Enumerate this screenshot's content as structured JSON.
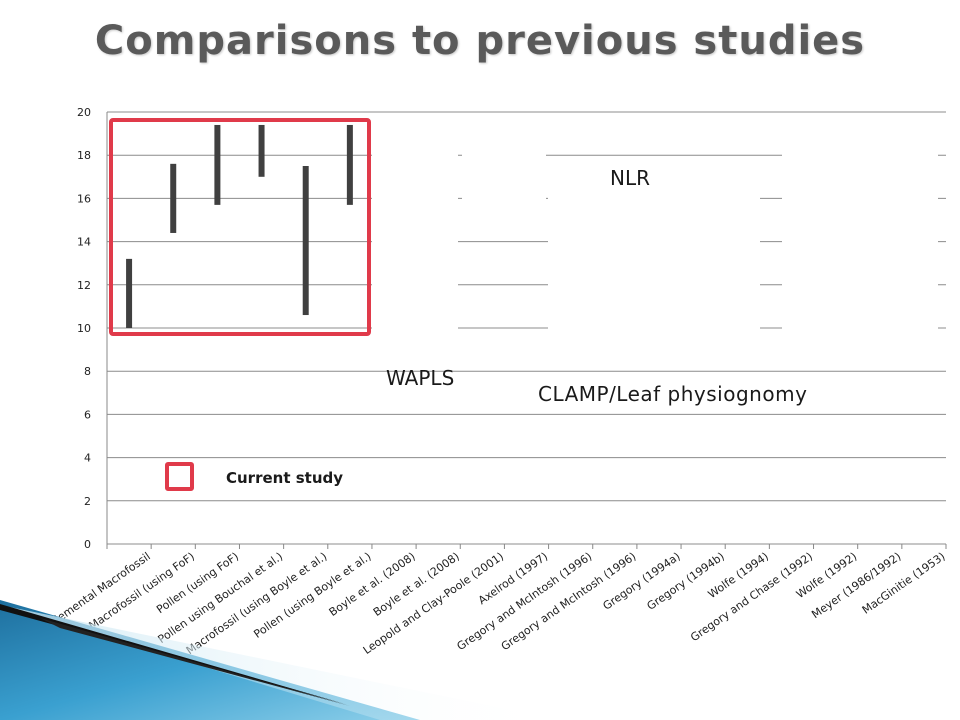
{
  "slide": {
    "title": "Comparisons to previous studies"
  },
  "annotations": {
    "nlr": "NLR",
    "waples": "WAPLS",
    "clamp": "CLAMP/Leaf physiognomy",
    "legend_current": "Current study"
  },
  "colors": {
    "bar": "#404040",
    "highlight": "#e03a4a",
    "grid": "#8c8c8c",
    "title": "#5a5a5a",
    "deco_blue": "#2a8fc0"
  },
  "chart_data": {
    "type": "bar",
    "subtype": "floating-range",
    "title": "",
    "xlabel": "",
    "ylabel": "",
    "ylim": [
      0,
      20
    ],
    "yticks": [
      0,
      2,
      4,
      6,
      8,
      10,
      12,
      14,
      16,
      18,
      20
    ],
    "grid": true,
    "categories": [
      "Supplemental Macrofossil",
      "Macrofossil (using FoF)",
      "Pollen (using FoF)",
      "Pollen using Bouchal et al.)",
      "Macrofossil (using Boyle et al.)",
      "Pollen (using Boyle et al.)",
      "Boyle et al. (2008)",
      "Boyle et al. (2008)",
      "Leopold and Clay-Poole (2001)",
      "Axelrod (1997)",
      "Gregory and McIntosh (1996)",
      "Gregory and McIntosh (1996)",
      "Gregory (1994a)",
      "Gregory (1994b)",
      "Wolfe (1994)",
      "Gregory and Chase (1992)",
      "Wolfe (1992)",
      "Meyer (1986/1992)",
      "MacGinitie (1953)"
    ],
    "ranges": [
      [
        10.0,
        13.2
      ],
      [
        14.4,
        17.6
      ],
      [
        15.7,
        19.4
      ],
      [
        17.0,
        19.4
      ],
      [
        10.6,
        17.5
      ],
      [
        15.7,
        19.4
      ],
      null,
      null,
      null,
      null,
      null,
      null,
      null,
      null,
      null,
      null,
      null,
      null,
      null
    ]
  }
}
